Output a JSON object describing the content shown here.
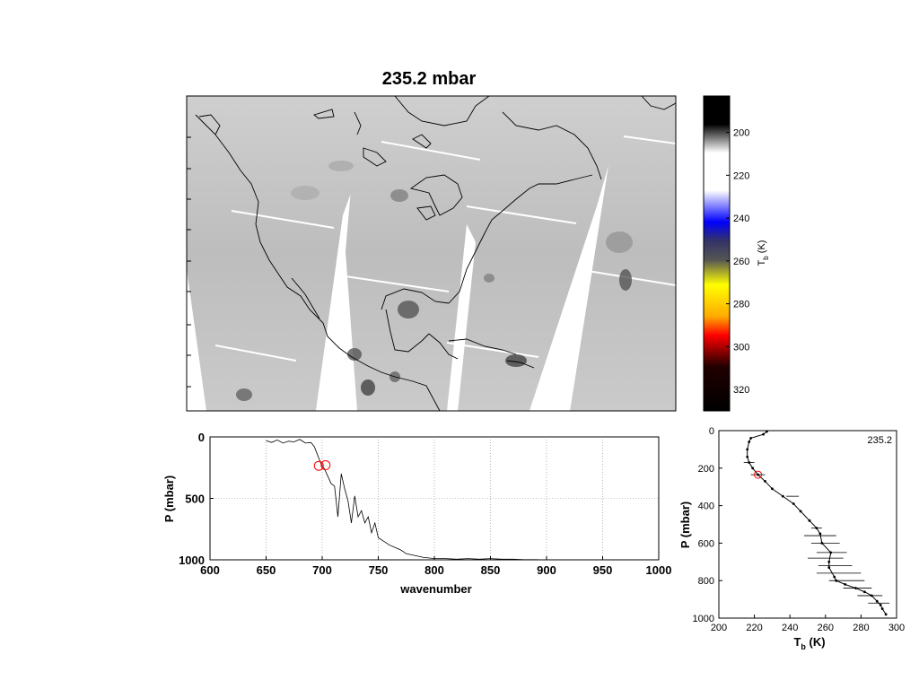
{
  "title": "235.2 mbar",
  "map": {
    "colorbar": {
      "label": "T",
      "label_sub": "b",
      "label_unit": " (K)",
      "ticks": [
        200,
        220,
        240,
        260,
        280,
        300,
        320
      ],
      "range": [
        183,
        330
      ],
      "colors": {
        "black": "#000000",
        "white": "#ffffff",
        "blue": "#0000ff",
        "yellow": "#ffff00",
        "red": "#ff0000"
      }
    }
  },
  "chart_data": [
    {
      "type": "line",
      "xlabel": "wavenumber",
      "ylabel": "P (mbar)",
      "xlim": [
        600,
        1000
      ],
      "ylim": [
        1000,
        0
      ],
      "xticks": [
        600,
        650,
        700,
        750,
        800,
        850,
        900,
        950,
        1000
      ],
      "yticks": [
        0,
        500,
        1000
      ],
      "grid": true,
      "highlight": {
        "color": "#ff0000",
        "points": [
          [
            697,
            235
          ],
          [
            703,
            230
          ]
        ]
      },
      "series": [
        {
          "x": [
            650,
            655,
            660,
            665,
            670,
            675,
            680,
            685,
            690,
            693,
            696,
            699,
            702,
            705,
            708,
            711,
            714,
            717,
            720,
            723,
            726,
            729,
            732,
            735,
            738,
            741,
            744,
            747,
            750,
            755,
            760,
            765,
            770,
            775,
            780,
            790,
            800,
            810,
            820,
            830,
            840,
            850,
            860,
            870,
            880,
            890,
            900,
            920,
            950,
            1000
          ],
          "y": [
            30,
            45,
            25,
            50,
            35,
            40,
            20,
            50,
            45,
            80,
            150,
            220,
            260,
            320,
            380,
            400,
            650,
            300,
            420,
            520,
            700,
            480,
            650,
            600,
            700,
            650,
            780,
            700,
            820,
            850,
            880,
            900,
            920,
            950,
            960,
            980,
            990,
            990,
            995,
            990,
            995,
            990,
            995,
            995,
            998,
            998,
            1000,
            1000,
            1000,
            1000
          ]
        }
      ]
    },
    {
      "type": "line",
      "xlabel": "T",
      "xlabel_sub": "b",
      "xlabel_unit": " (K)",
      "ylabel": "P (mbar)",
      "annotation": "235.2",
      "xlim": [
        200,
        300
      ],
      "ylim": [
        1000,
        0
      ],
      "xticks": [
        200,
        220,
        240,
        260,
        280,
        300
      ],
      "yticks": [
        0,
        200,
        400,
        600,
        800,
        1000
      ],
      "highlight": {
        "color": "#ff0000",
        "points": [
          [
            222,
            235
          ]
        ]
      },
      "series": [
        {
          "x": [
            227,
            225,
            218,
            217,
            216,
            216,
            217,
            219,
            222,
            226,
            230,
            236,
            242,
            246,
            251,
            255,
            257,
            258,
            263,
            262,
            262,
            265,
            266,
            271,
            277,
            282,
            286,
            289,
            291,
            292,
            294
          ],
          "y": [
            5,
            20,
            40,
            60,
            100,
            140,
            170,
            200,
            235,
            270,
            310,
            350,
            390,
            430,
            480,
            520,
            550,
            600,
            650,
            700,
            730,
            780,
            800,
            820,
            840,
            860,
            880,
            910,
            930,
            950,
            980
          ]
        }
      ],
      "error_bars": [
        {
          "y": 170,
          "xmin": 214,
          "xmax": 220
        },
        {
          "y": 235,
          "xmin": 218,
          "xmax": 226
        },
        {
          "y": 350,
          "xmin": 238,
          "xmax": 245
        },
        {
          "y": 520,
          "xmin": 252,
          "xmax": 258
        },
        {
          "y": 560,
          "xmin": 248,
          "xmax": 266
        },
        {
          "y": 600,
          "xmin": 252,
          "xmax": 268
        },
        {
          "y": 650,
          "xmin": 255,
          "xmax": 272
        },
        {
          "y": 680,
          "xmin": 250,
          "xmax": 270
        },
        {
          "y": 720,
          "xmin": 256,
          "xmax": 275
        },
        {
          "y": 760,
          "xmin": 255,
          "xmax": 280
        },
        {
          "y": 800,
          "xmin": 262,
          "xmax": 282
        },
        {
          "y": 840,
          "xmin": 270,
          "xmax": 286
        },
        {
          "y": 880,
          "xmin": 278,
          "xmax": 292
        },
        {
          "y": 920,
          "xmin": 284,
          "xmax": 296
        }
      ]
    }
  ]
}
